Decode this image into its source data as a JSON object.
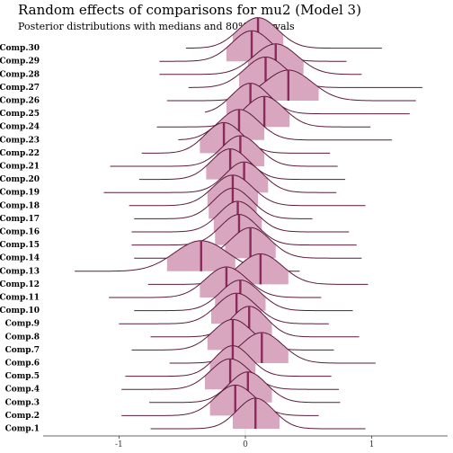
{
  "chart_data": {
    "type": "ridgeline",
    "title": "Random effects of comparisons for mu2 (Model 3)",
    "subtitle": "Posterior distributions with medians and 80% intervals",
    "xlabel": "",
    "ylabel": "",
    "xlim": [
      -1.6,
      1.6
    ],
    "x_ticks": [
      -1,
      0,
      1
    ],
    "x_tick_labels": [
      "-1",
      "0",
      "1"
    ],
    "colors": {
      "outline": "#5c1a3a",
      "fill": "#d9a6c0",
      "median": "#8b2a5a",
      "zero_line": "#e0e0e0"
    },
    "series": [
      {
        "name": "Comp.1",
        "median": 0.08,
        "lo80": -0.1,
        "hi80": 0.27,
        "xmin": -0.75,
        "xmax": 0.95
      },
      {
        "name": "Comp.2",
        "median": -0.08,
        "lo80": -0.28,
        "hi80": 0.12,
        "xmin": -0.98,
        "xmax": 0.58
      },
      {
        "name": "Comp.3",
        "median": 0.02,
        "lo80": -0.17,
        "hi80": 0.21,
        "xmin": -0.76,
        "xmax": 0.75
      },
      {
        "name": "Comp.4",
        "median": -0.12,
        "lo80": -0.32,
        "hi80": 0.08,
        "xmin": -0.98,
        "xmax": 0.74
      },
      {
        "name": "Comp.5",
        "median": -0.1,
        "lo80": -0.28,
        "hi80": 0.08,
        "xmin": -0.95,
        "xmax": 0.68
      },
      {
        "name": "Comp.6",
        "median": 0.13,
        "lo80": -0.08,
        "hi80": 0.34,
        "xmin": -0.6,
        "xmax": 1.03
      },
      {
        "name": "Comp.7",
        "median": -0.1,
        "lo80": -0.3,
        "hi80": 0.1,
        "xmin": -0.9,
        "xmax": 0.7
      },
      {
        "name": "Comp.8",
        "median": 0.03,
        "lo80": -0.15,
        "hi80": 0.21,
        "xmin": -0.75,
        "xmax": 0.9
      },
      {
        "name": "Comp.9",
        "median": -0.07,
        "lo80": -0.27,
        "hi80": 0.13,
        "xmin": -1.0,
        "xmax": 0.66
      },
      {
        "name": "Comp.10",
        "median": -0.04,
        "lo80": -0.24,
        "hi80": 0.16,
        "xmin": -0.88,
        "xmax": 0.85
      },
      {
        "name": "Comp.11",
        "median": -0.15,
        "lo80": -0.36,
        "hi80": 0.06,
        "xmin": -1.08,
        "xmax": 0.6
      },
      {
        "name": "Comp.12",
        "median": 0.12,
        "lo80": -0.1,
        "hi80": 0.34,
        "xmin": -0.77,
        "xmax": 0.97
      },
      {
        "name": "Comp.13",
        "median": -0.35,
        "lo80": -0.62,
        "hi80": -0.08,
        "xmin": -1.35,
        "xmax": 0.43
      },
      {
        "name": "Comp.14",
        "median": 0.04,
        "lo80": -0.16,
        "hi80": 0.24,
        "xmin": -0.88,
        "xmax": 0.92
      },
      {
        "name": "Comp.15",
        "median": -0.05,
        "lo80": -0.24,
        "hi80": 0.14,
        "xmin": -0.9,
        "xmax": 0.88
      },
      {
        "name": "Comp.16",
        "median": -0.06,
        "lo80": -0.25,
        "hi80": 0.13,
        "xmin": -0.9,
        "xmax": 0.82
      },
      {
        "name": "Comp.17",
        "median": -0.1,
        "lo80": -0.29,
        "hi80": 0.09,
        "xmin": -0.88,
        "xmax": 0.53
      },
      {
        "name": "Comp.18",
        "median": -0.1,
        "lo80": -0.3,
        "hi80": 0.1,
        "xmin": -0.92,
        "xmax": 0.95
      },
      {
        "name": "Comp.19",
        "median": -0.01,
        "lo80": -0.2,
        "hi80": 0.18,
        "xmin": -1.12,
        "xmax": 0.72
      },
      {
        "name": "Comp.20",
        "median": -0.12,
        "lo80": -0.31,
        "hi80": 0.07,
        "xmin": -0.84,
        "xmax": 0.79
      },
      {
        "name": "Comp.21",
        "median": -0.04,
        "lo80": -0.23,
        "hi80": 0.15,
        "xmin": -1.07,
        "xmax": 0.73
      },
      {
        "name": "Comp.22",
        "median": -0.17,
        "lo80": -0.36,
        "hi80": 0.02,
        "xmin": -0.82,
        "xmax": 0.67
      },
      {
        "name": "Comp.23",
        "median": -0.05,
        "lo80": -0.25,
        "hi80": 0.15,
        "xmin": -0.53,
        "xmax": 1.16
      },
      {
        "name": "Comp.24",
        "median": 0.15,
        "lo80": -0.05,
        "hi80": 0.35,
        "xmin": -0.7,
        "xmax": 0.99
      },
      {
        "name": "Comp.25",
        "median": 0.04,
        "lo80": -0.15,
        "hi80": 0.23,
        "xmin": -0.32,
        "xmax": 1.3
      },
      {
        "name": "Comp.26",
        "median": 0.34,
        "lo80": 0.1,
        "hi80": 0.58,
        "xmin": -0.62,
        "xmax": 1.35
      },
      {
        "name": "Comp.27",
        "median": 0.16,
        "lo80": -0.05,
        "hi80": 0.37,
        "xmin": -0.45,
        "xmax": 1.4
      },
      {
        "name": "Comp.28",
        "median": 0.24,
        "lo80": 0.02,
        "hi80": 0.46,
        "xmin": -0.68,
        "xmax": 0.92
      },
      {
        "name": "Comp.29",
        "median": 0.05,
        "lo80": -0.15,
        "hi80": 0.25,
        "xmin": -0.68,
        "xmax": 0.8
      },
      {
        "name": "Comp.30",
        "median": 0.1,
        "lo80": -0.1,
        "hi80": 0.3,
        "xmin": -0.47,
        "xmax": 1.08
      }
    ]
  }
}
